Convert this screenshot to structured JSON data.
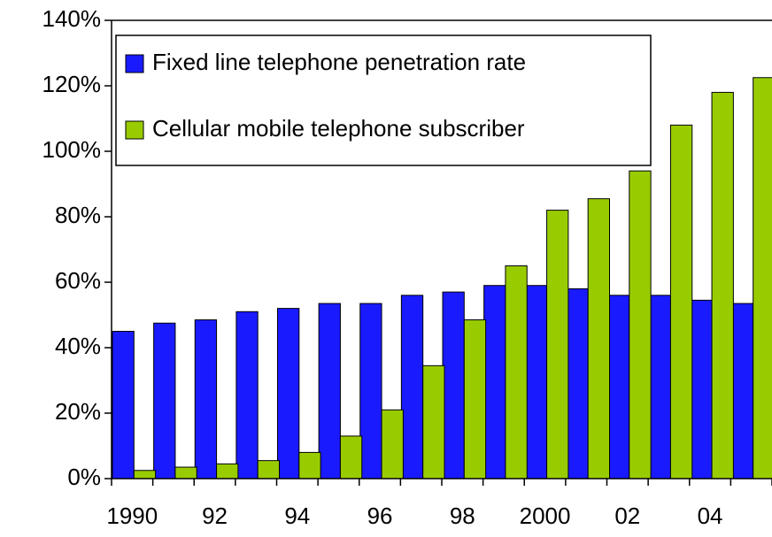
{
  "chart_data": {
    "type": "bar",
    "categories": [
      "1990",
      null,
      "92",
      null,
      "94",
      null,
      "96",
      null,
      "98",
      null,
      "2000",
      null,
      "02",
      null,
      "04",
      null
    ],
    "series": [
      {
        "name": "Fixed line telephone penetration rate",
        "color": "#1a1aff",
        "values": [
          45,
          47.5,
          48.5,
          51,
          52,
          53.5,
          53.5,
          56,
          57,
          59,
          59,
          58,
          56,
          56,
          54.5,
          53.5
        ]
      },
      {
        "name": "Cellular mobile telephone subscriber",
        "color": "#99cc00",
        "values": [
          2.5,
          3.5,
          4.5,
          5.5,
          8,
          13,
          21,
          34.5,
          48.5,
          65,
          82,
          85.5,
          94,
          108,
          118,
          122.5
        ]
      }
    ],
    "ylim": [
      0,
      140
    ],
    "yticks": [
      {
        "value": 0,
        "label": "0%"
      },
      {
        "value": 20,
        "label": "20%"
      },
      {
        "value": 40,
        "label": "40%"
      },
      {
        "value": 60,
        "label": "60%"
      },
      {
        "value": 80,
        "label": "80%"
      },
      {
        "value": 100,
        "label": "100%"
      },
      {
        "value": 120,
        "label": "120%"
      },
      {
        "value": 140,
        "label": "140%"
      }
    ],
    "legend": "top-left"
  }
}
